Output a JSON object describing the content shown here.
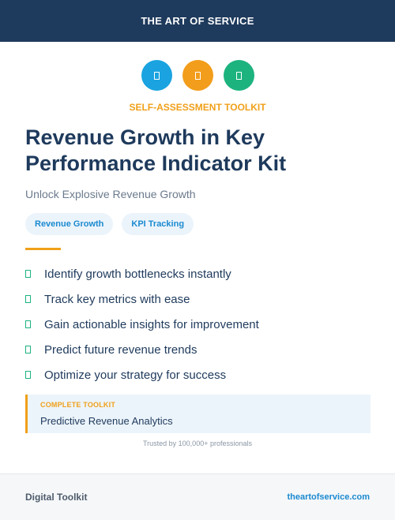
{
  "header": {
    "title": "THE ART OF SERVICE"
  },
  "icons": [
    {
      "name": "document-icon",
      "color": "#1aa3e0"
    },
    {
      "name": "document-icon",
      "color": "#f29d1b"
    },
    {
      "name": "document-icon",
      "color": "#1db37f"
    }
  ],
  "eyebrow": "SELF-ASSESSMENT TOOLKIT",
  "title": "Revenue Growth in Key Performance Indicator Kit",
  "subtitle": "Unlock Explosive Revenue Growth",
  "tags": [
    "Revenue Growth",
    "KPI Tracking"
  ],
  "features": [
    "Identify growth bottlenecks instantly",
    "Track key metrics with ease",
    "Gain actionable insights for improvement",
    "Predict future revenue trends",
    "Optimize your strategy for success"
  ],
  "callout": {
    "label": "COMPLETE TOOLKIT",
    "text": "Predictive Revenue Analytics"
  },
  "trusted": "Trusted by 100,000+ professionals",
  "footer": {
    "left": "Digital Toolkit",
    "right": "theartofservice.com"
  },
  "colors": {
    "navy": "#1e3a5c",
    "accent_orange": "#f0a01a",
    "accent_blue": "#1b8ad0",
    "accent_green": "#1db37f"
  }
}
